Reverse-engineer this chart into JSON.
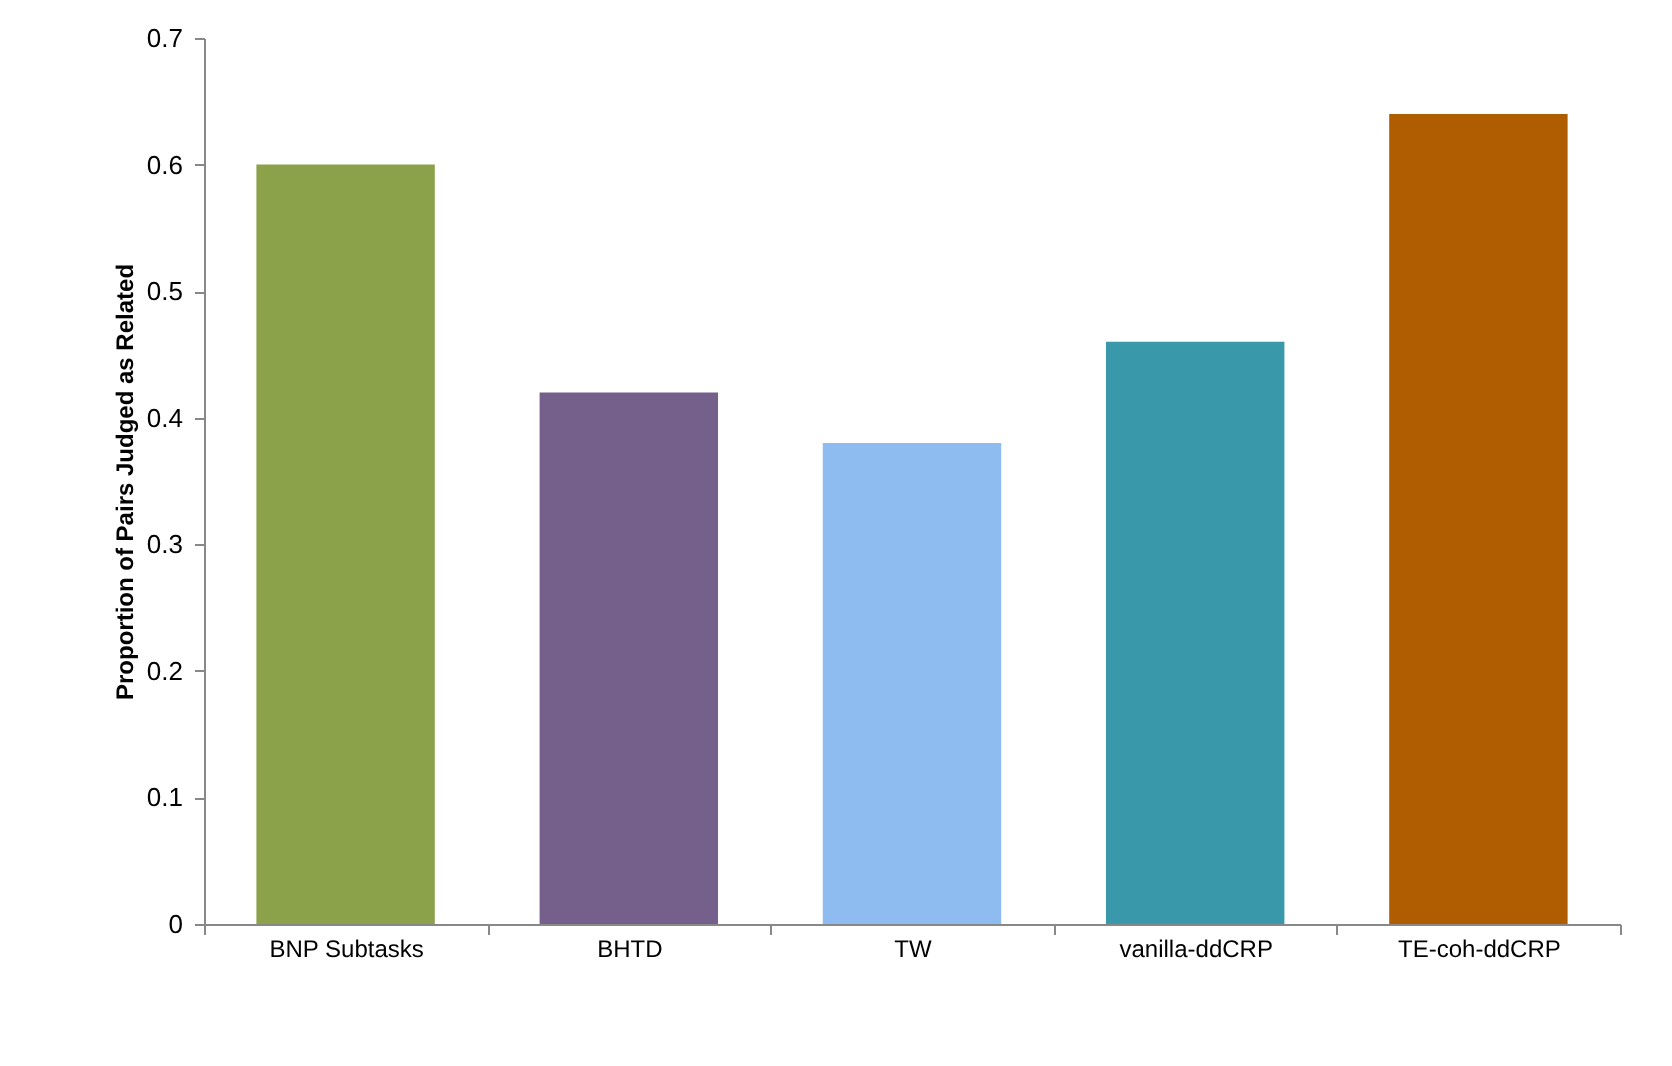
{
  "chart_data": {
    "type": "bar",
    "ylabel": "Proportion of Pairs Judged as Related",
    "categories": [
      "BNP Subtasks",
      "BHTD",
      "TW",
      "vanilla-ddCRP",
      "TE-coh-ddCRP"
    ],
    "values": [
      0.6,
      0.42,
      0.38,
      0.46,
      0.64
    ],
    "colors": [
      "#8ba24a",
      "#75608c",
      "#8ebbf0",
      "#3a98ab",
      "#b05c00"
    ],
    "ylim": [
      0,
      0.7
    ],
    "yticks": [
      0,
      0.1,
      0.2,
      0.3,
      0.4,
      0.5,
      0.6,
      0.7
    ],
    "grid": false
  }
}
